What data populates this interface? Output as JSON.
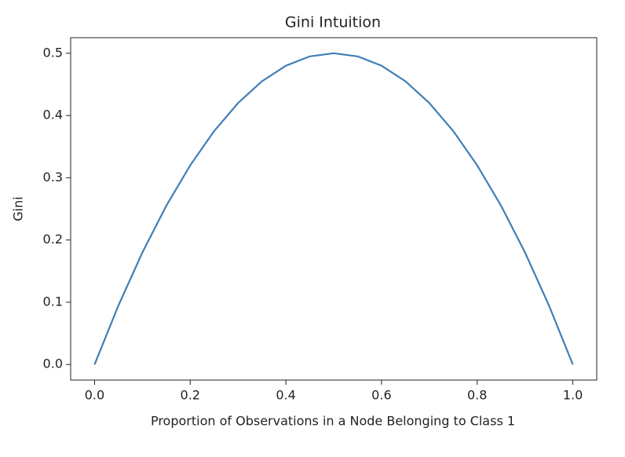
{
  "chart_data": {
    "type": "line",
    "title": "Gini Intuition",
    "x_label": "Proportion of Observations in a Node Belonging to Class 1",
    "y_label": "Gini",
    "x": [
      0,
      0.05,
      0.1,
      0.15,
      0.2,
      0.25,
      0.3,
      0.35,
      0.4,
      0.45,
      0.5,
      0.55,
      0.6,
      0.65,
      0.7,
      0.75,
      0.8,
      0.85,
      0.9,
      0.95,
      1
    ],
    "values": [
      0,
      0.095,
      0.18,
      0.255,
      0.32,
      0.375,
      0.42,
      0.455,
      0.48,
      0.495,
      0.5,
      0.495,
      0.48,
      0.455,
      0.42,
      0.375,
      0.32,
      0.255,
      0.18,
      0.095,
      0
    ],
    "color": "#3f7fb8",
    "xlim": [
      -0.05,
      1.05
    ],
    "xticks": [
      {
        "value": 0,
        "label": "0.0"
      },
      0.2,
      0.4,
      0.6,
      0.8,
      {
        "value": 1,
        "label": "1.0"
      }
    ],
    "ylim": [
      -0.025,
      0.525
    ],
    "yticks": [
      {
        "value": 0,
        "label": "0.0"
      },
      0.1,
      0.2,
      0.3,
      0.4,
      0.5
    ],
    "grid": false
  }
}
